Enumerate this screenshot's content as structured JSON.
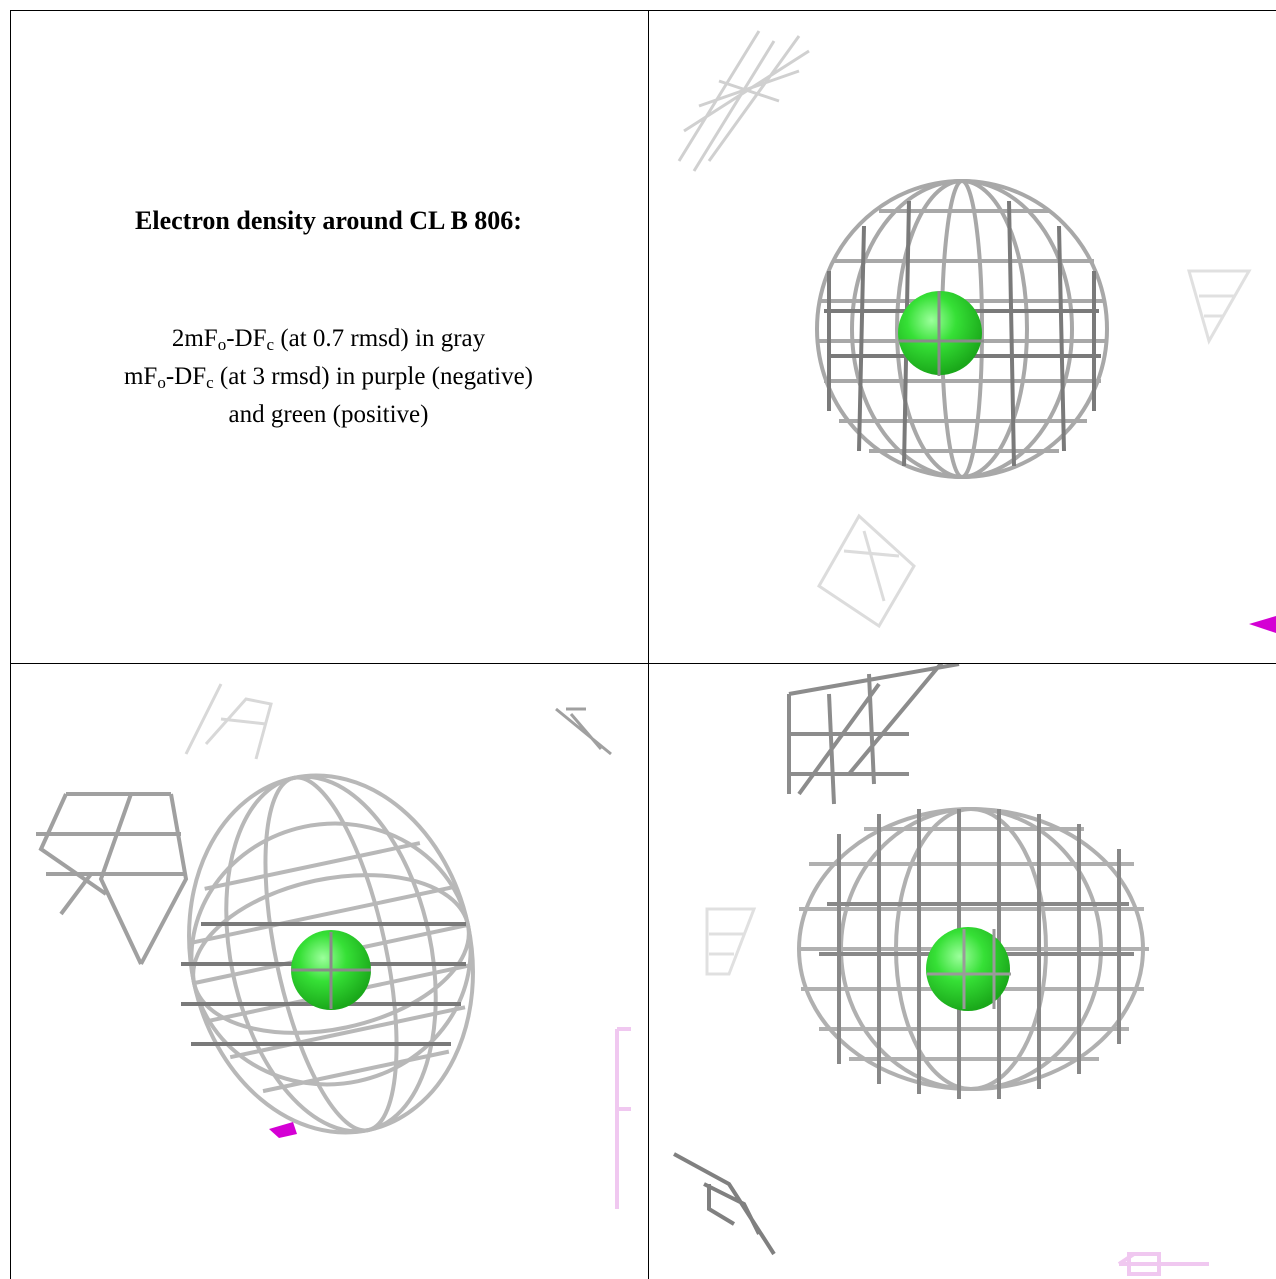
{
  "caption": {
    "title": "Electron density around CL B 806:",
    "line1_a": "2mF",
    "line1_sub1": "o",
    "line1_b": "-DF",
    "line1_sub2": "c",
    "line1_c": " (at 0.7 rmsd) in gray",
    "line2_a": "mF",
    "line2_sub1": "o",
    "line2_b": "-DF",
    "line2_sub2": "c",
    "line2_c": " (at 3 rmsd) in purple (negative)",
    "line3": "and green (positive)"
  },
  "colors": {
    "mesh_gray": "#a8a8a8",
    "mesh_dark": "#6e6e6e",
    "atom_green": "#2fd62f",
    "negative_purple": "#d400d4",
    "faint_purple": "#f0c8f0"
  },
  "panels": [
    {
      "id": "view-1",
      "atom": "CL B 806"
    },
    {
      "id": "view-2",
      "atom": "CL B 806"
    },
    {
      "id": "view-3",
      "atom": "CL B 806"
    }
  ]
}
